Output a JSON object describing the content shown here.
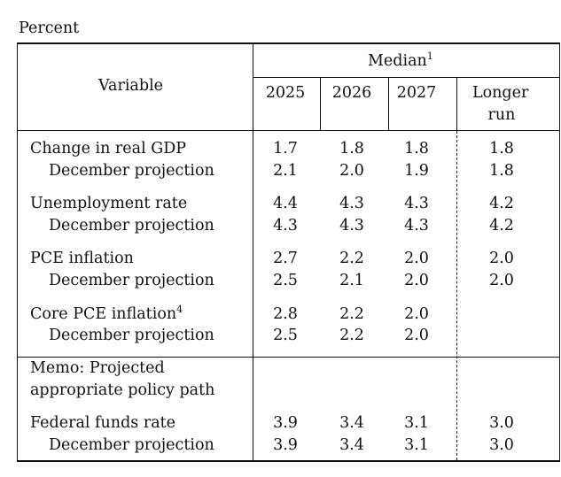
{
  "unit_label": "Percent",
  "header": {
    "variable": "Variable",
    "median": "Median",
    "median_note": "1",
    "years": [
      "2025",
      "2026",
      "2027"
    ],
    "longer_run_line1": "Longer",
    "longer_run_line2": "run"
  },
  "rows": {
    "gdp": {
      "label": "Change in real GDP",
      "values": [
        "1.7",
        "1.8",
        "1.8",
        "1.8"
      ]
    },
    "gdp_dec": {
      "label": "December projection",
      "values": [
        "2.1",
        "2.0",
        "1.9",
        "1.8"
      ]
    },
    "unemp": {
      "label": "Unemployment rate",
      "values": [
        "4.4",
        "4.3",
        "4.3",
        "4.2"
      ]
    },
    "unemp_dec": {
      "label": "December projection",
      "values": [
        "4.3",
        "4.3",
        "4.3",
        "4.2"
      ]
    },
    "pce": {
      "label": "PCE inflation",
      "values": [
        "2.7",
        "2.2",
        "2.0",
        "2.0"
      ]
    },
    "pce_dec": {
      "label": "December projection",
      "values": [
        "2.5",
        "2.1",
        "2.0",
        "2.0"
      ]
    },
    "core": {
      "label": "Core PCE inflation",
      "note": "4",
      "values": [
        "2.8",
        "2.2",
        "2.0",
        ""
      ]
    },
    "core_dec": {
      "label": "December projection",
      "values": [
        "2.5",
        "2.2",
        "2.0",
        ""
      ]
    },
    "memo_line1": "Memo: Projected",
    "memo_line2": "appropriate policy path",
    "ffr": {
      "label": "Federal funds rate",
      "values": [
        "3.9",
        "3.4",
        "3.1",
        "3.0"
      ]
    },
    "ffr_dec": {
      "label": "December projection",
      "values": [
        "3.9",
        "3.4",
        "3.1",
        "3.0"
      ]
    }
  }
}
